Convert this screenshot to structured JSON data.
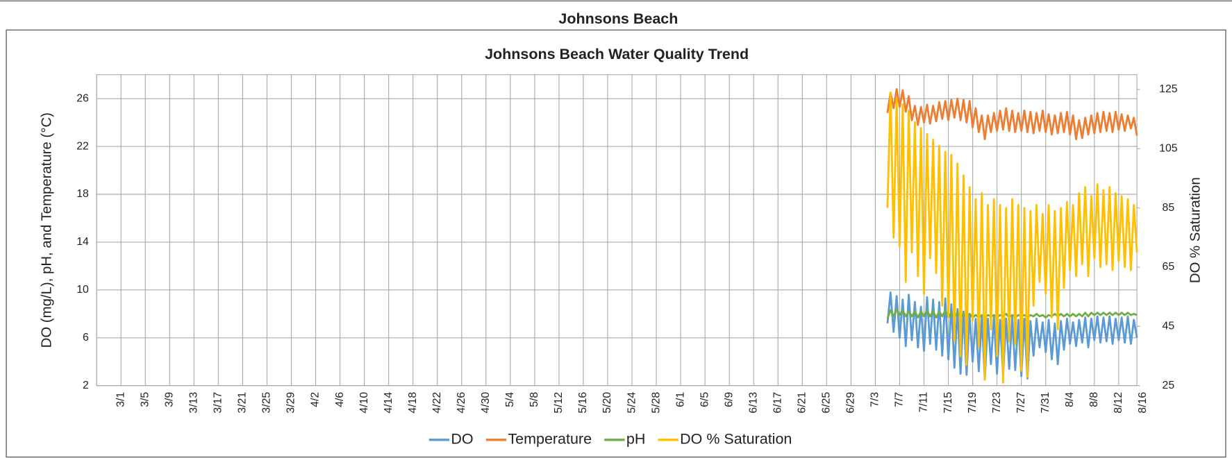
{
  "header": {
    "title": "Johnsons Beach"
  },
  "chart_data": {
    "type": "line",
    "title": "Johnsons Beach Water Quality Trend",
    "y_label": "DO (mg/L), pH, and Temperature (°C)",
    "y2_label": "DO % Saturation",
    "xlim": [
      0,
      171
    ],
    "xticks": [
      {
        "value": 0,
        "label": "3/1"
      },
      {
        "value": 4,
        "label": "3/5"
      },
      {
        "value": 8,
        "label": "3/9"
      },
      {
        "value": 12,
        "label": "3/13"
      },
      {
        "value": 16,
        "label": "3/17"
      },
      {
        "value": 20,
        "label": "3/21"
      },
      {
        "value": 24,
        "label": "3/25"
      },
      {
        "value": 28,
        "label": "3/29"
      },
      {
        "value": 32,
        "label": "4/2"
      },
      {
        "value": 36,
        "label": "4/6"
      },
      {
        "value": 40,
        "label": "4/10"
      },
      {
        "value": 44,
        "label": "4/14"
      },
      {
        "value": 48,
        "label": "4/18"
      },
      {
        "value": 52,
        "label": "4/22"
      },
      {
        "value": 56,
        "label": "4/26"
      },
      {
        "value": 60,
        "label": "4/30"
      },
      {
        "value": 64,
        "label": "5/4"
      },
      {
        "value": 68,
        "label": "5/8"
      },
      {
        "value": 72,
        "label": "5/12"
      },
      {
        "value": 76,
        "label": "5/16"
      },
      {
        "value": 80,
        "label": "5/20"
      },
      {
        "value": 84,
        "label": "5/24"
      },
      {
        "value": 88,
        "label": "5/28"
      },
      {
        "value": 92,
        "label": "6/1"
      },
      {
        "value": 96,
        "label": "6/5"
      },
      {
        "value": 100,
        "label": "6/9"
      },
      {
        "value": 104,
        "label": "6/13"
      },
      {
        "value": 108,
        "label": "6/17"
      },
      {
        "value": 112,
        "label": "6/21"
      },
      {
        "value": 116,
        "label": "6/25"
      },
      {
        "value": 120,
        "label": "6/29"
      },
      {
        "value": 124,
        "label": "7/3"
      },
      {
        "value": 128,
        "label": "7/7"
      },
      {
        "value": 132,
        "label": "7/11"
      },
      {
        "value": 136,
        "label": "7/15"
      },
      {
        "value": 140,
        "label": "7/19"
      },
      {
        "value": 144,
        "label": "7/23"
      },
      {
        "value": 148,
        "label": "7/27"
      },
      {
        "value": 152,
        "label": "7/31"
      },
      {
        "value": 156,
        "label": "8/4"
      },
      {
        "value": 160,
        "label": "8/8"
      },
      {
        "value": 164,
        "label": "8/12"
      },
      {
        "value": 168,
        "label": "8/16"
      }
    ],
    "ylim": [
      2,
      28
    ],
    "yticks": [
      2,
      6,
      10,
      14,
      18,
      22,
      26
    ],
    "y2lim": [
      25,
      130
    ],
    "y2ticks": [
      25,
      45,
      65,
      85,
      105,
      125
    ],
    "grid": true,
    "legend": "bottom",
    "x": [
      130,
      130.5,
      131,
      131.5,
      132,
      132.5,
      133,
      133.5,
      134,
      134.5,
      135,
      135.5,
      136,
      136.5,
      137,
      137.5,
      138,
      138.5,
      139,
      139.5,
      140,
      140.5,
      141,
      141.5,
      142,
      142.5,
      143,
      143.5,
      144,
      144.5,
      145,
      145.5,
      146,
      146.5,
      147,
      147.5,
      148,
      148.5,
      149,
      149.5,
      150,
      150.5,
      151,
      151.5,
      152,
      152.5,
      153,
      153.5,
      154,
      154.5,
      155,
      155.5,
      156,
      156.5,
      157,
      157.5,
      158,
      158.5,
      159,
      159.5,
      160,
      160.5,
      161,
      161.5,
      162,
      162.5,
      163,
      163.5,
      164,
      164.5,
      165,
      165.5,
      166,
      166.5,
      167,
      167.5,
      168,
      168.5,
      169,
      169.5,
      170,
      170.5,
      171
    ],
    "series": [
      {
        "name": "DO",
        "color": "#5b9bd5",
        "values": [
          7.2,
          9.8,
          6.5,
          9.5,
          6.0,
          9.2,
          5.3,
          9.6,
          5.8,
          9.0,
          5.2,
          8.6,
          4.9,
          9.4,
          5.5,
          9.2,
          5.0,
          9.0,
          4.5,
          9.3,
          4.2,
          8.8,
          3.5,
          8.4,
          3.0,
          8.2,
          2.9,
          8.0,
          4.0,
          7.6,
          3.2,
          7.8,
          2.5,
          7.6,
          3.8,
          7.8,
          3.0,
          7.5,
          2.9,
          7.6,
          3.4,
          7.7,
          3.3,
          7.5,
          2.8,
          7.6,
          2.6,
          7.4,
          4.5,
          7.6,
          5.2,
          7.3,
          4.8,
          7.5,
          4.2,
          7.2,
          3.8,
          7.4,
          5.0,
          7.6,
          5.5,
          7.3,
          5.3,
          7.5,
          5.6,
          7.7,
          5.2,
          7.6,
          5.8,
          7.8,
          5.6,
          7.7,
          5.7,
          7.8,
          5.5,
          7.6,
          5.8,
          7.7,
          5.6,
          7.8,
          5.5,
          7.5,
          6.0
        ]
      },
      {
        "name": "Temperature",
        "color": "#ed7d31",
        "values": [
          24.8,
          26.5,
          25.2,
          26.8,
          25.3,
          26.7,
          24.9,
          26.2,
          24.2,
          25.4,
          23.8,
          25.3,
          24.0,
          25.5,
          23.9,
          25.4,
          24.1,
          25.7,
          24.3,
          25.8,
          24.2,
          25.9,
          24.4,
          26.0,
          24.2,
          25.9,
          24.0,
          25.8,
          23.6,
          25.2,
          23.2,
          24.6,
          22.6,
          24.6,
          23.2,
          24.8,
          23.3,
          25.0,
          23.4,
          25.2,
          23.3,
          25.0,
          23.2,
          24.8,
          23.3,
          25.0,
          23.2,
          24.9,
          23.1,
          24.8,
          23.3,
          25.0,
          23.2,
          24.7,
          23.0,
          24.6,
          23.1,
          24.8,
          23.2,
          24.9,
          23.0,
          24.6,
          22.6,
          24.2,
          22.7,
          24.4,
          23.0,
          24.6,
          23.1,
          24.8,
          23.2,
          24.9,
          23.3,
          24.8,
          23.2,
          24.9,
          23.4,
          24.7,
          23.3,
          24.6,
          23.5,
          24.4,
          22.9
        ]
      },
      {
        "name": "pH",
        "color": "#70ad47",
        "values": [
          7.6,
          8.3,
          7.8,
          8.4,
          7.9,
          8.3,
          7.8,
          8.2,
          7.8,
          8.2,
          7.7,
          8.2,
          7.8,
          8.3,
          7.8,
          8.2,
          7.7,
          8.2,
          7.8,
          8.3,
          7.7,
          8.1,
          7.7,
          8.1,
          7.7,
          8.0,
          7.7,
          8.0,
          7.7,
          7.9,
          7.7,
          7.9,
          7.7,
          7.9,
          7.8,
          7.9,
          7.7,
          7.9,
          7.8,
          8.0,
          7.7,
          7.9,
          7.7,
          7.9,
          7.8,
          7.9,
          7.7,
          7.9,
          7.8,
          8.0,
          7.8,
          7.9,
          7.7,
          7.9,
          7.8,
          8.0,
          7.8,
          8.0,
          7.8,
          8.0,
          7.8,
          8.0,
          7.8,
          8.0,
          7.8,
          8.1,
          7.8,
          8.1,
          7.9,
          8.1,
          7.9,
          8.1,
          7.9,
          8.1,
          7.9,
          8.1,
          7.9,
          8.1,
          7.9,
          8.1,
          7.9,
          8.0,
          7.9
        ]
      },
      {
        "name": "DO % Saturation",
        "color": "#ffc000",
        "axis": "y2",
        "values": [
          85,
          124,
          75,
          122,
          72,
          120,
          60,
          118,
          70,
          114,
          62,
          112,
          56,
          110,
          68,
          108,
          63,
          106,
          52,
          104,
          48,
          103,
          40,
          100,
          35,
          96,
          32,
          92,
          47,
          88,
          38,
          90,
          27,
          86,
          44,
          88,
          35,
          86,
          26,
          85,
          40,
          88,
          39,
          86,
          30,
          85,
          28,
          84,
          52,
          86,
          60,
          83,
          56,
          86,
          48,
          84,
          44,
          85,
          58,
          87,
          64,
          86,
          62,
          90,
          66,
          92,
          62,
          89,
          68,
          93,
          65,
          91,
          66,
          92,
          64,
          90,
          67,
          89,
          65,
          88,
          64,
          86,
          70
        ]
      }
    ]
  }
}
